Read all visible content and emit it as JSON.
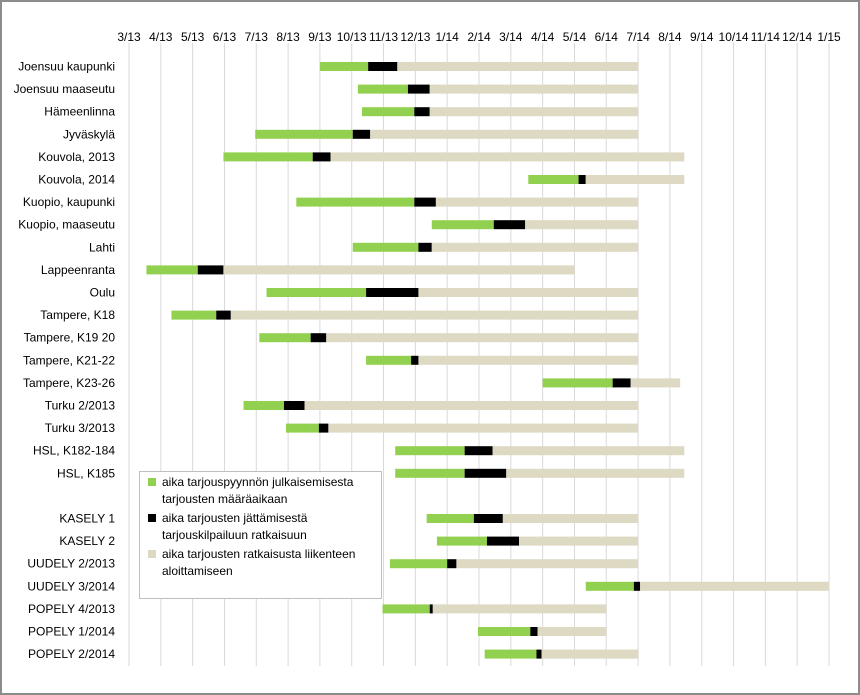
{
  "chart_data": {
    "type": "bar",
    "stacked": true,
    "orientation": "horizontal",
    "title": "",
    "x_ticks": [
      "3/13",
      "4/13",
      "5/13",
      "6/13",
      "7/13",
      "8/13",
      "9/13",
      "10/13",
      "11/13",
      "12/13",
      "1/14",
      "2/14",
      "3/14",
      "4/14",
      "5/14",
      "6/14",
      "7/14",
      "8/14",
      "9/14",
      "10/14",
      "11/14",
      "12/14",
      "1/15"
    ],
    "xlim": [
      "3/13",
      "1/15"
    ],
    "grid": true,
    "legend_placement": "inside lower-left",
    "colors": {
      "green": "#92d050",
      "black": "#000000",
      "beige": "#ddd9c3"
    },
    "series": [
      {
        "name": "aika tarjouspyynnön julkaisemisesta tarjousten määräaikaan",
        "color": "#92d050"
      },
      {
        "name": "aika tarjousten jättämisestä tarjouskilpailuun ratkaisuun",
        "color": "#000000"
      },
      {
        "name": "aika tarjousten ratkaisusta liikenteen aloittamiseen",
        "color": "#ddd9c3"
      }
    ],
    "rows": [
      {
        "label": "Joensuu kaupunki",
        "start": "2013-09-01",
        "tender_deadline": "2013-10-17",
        "decision": "2013-11-14",
        "service_start": "2014-07-01"
      },
      {
        "label": "Joensuu maaseutu",
        "start": "2013-10-07",
        "tender_deadline": "2013-11-24",
        "decision": "2013-12-15",
        "service_start": "2014-07-01"
      },
      {
        "label": "Hämeenlinna",
        "start": "2013-10-11",
        "tender_deadline": "2013-11-30",
        "decision": "2013-12-15",
        "service_start": "2014-07-01"
      },
      {
        "label": "Jyväskylä",
        "start": "2013-06-30",
        "tender_deadline": "2013-10-02",
        "decision": "2013-10-19",
        "service_start": "2014-07-01"
      },
      {
        "label": "Kouvola, 2013",
        "start": "2013-05-31",
        "tender_deadline": "2013-08-25",
        "decision": "2013-09-11",
        "service_start": "2014-08-15"
      },
      {
        "label": "Kouvola, 2014",
        "start": "2014-03-18",
        "tender_deadline": "2014-05-05",
        "decision": "2014-05-12",
        "service_start": "2014-08-15"
      },
      {
        "label": "Kuopio, kaupunki",
        "start": "2013-08-09",
        "tender_deadline": "2013-11-30",
        "decision": "2013-12-21",
        "service_start": "2014-07-01"
      },
      {
        "label": "Kuopio, maaseutu",
        "start": "2013-12-17",
        "tender_deadline": "2014-02-14",
        "decision": "2014-03-15",
        "service_start": "2014-07-01"
      },
      {
        "label": "Lahti",
        "start": "2013-10-02",
        "tender_deadline": "2013-12-04",
        "decision": "2013-12-17",
        "service_start": "2014-07-01"
      },
      {
        "label": "Lappeenranta",
        "start": "2013-03-18",
        "tender_deadline": "2013-05-06",
        "decision": "2013-05-31",
        "service_start": "2014-05-01"
      },
      {
        "label": "Oulu",
        "start": "2013-07-11",
        "tender_deadline": "2013-10-15",
        "decision": "2013-12-04",
        "service_start": "2014-07-01"
      },
      {
        "label": "Tampere, K18",
        "start": "2013-04-11",
        "tender_deadline": "2013-05-24",
        "decision": "2013-06-07",
        "service_start": "2014-07-01"
      },
      {
        "label": "Tampere, K19 20",
        "start": "2013-07-04",
        "tender_deadline": "2013-08-23",
        "decision": "2013-09-07",
        "service_start": "2014-07-01"
      },
      {
        "label": "Tampere, K21-22",
        "start": "2013-10-15",
        "tender_deadline": "2013-11-27",
        "decision": "2013-12-04",
        "service_start": "2014-07-01"
      },
      {
        "label": "Tampere, K23-26",
        "start": "2014-04-01",
        "tender_deadline": "2014-06-07",
        "decision": "2014-06-24",
        "service_start": "2014-08-11"
      },
      {
        "label": "Turku 2/2013",
        "start": "2013-06-19",
        "tender_deadline": "2013-07-28",
        "decision": "2013-08-17",
        "service_start": "2014-07-01"
      },
      {
        "label": "Turku 3/2013",
        "start": "2013-07-30",
        "tender_deadline": "2013-08-31",
        "decision": "2013-09-09",
        "service_start": "2014-07-01"
      },
      {
        "label": "HSL, K182-184",
        "start": "2013-11-12",
        "tender_deadline": "2014-01-18",
        "decision": "2014-02-13",
        "service_start": "2014-08-15"
      },
      {
        "label": "HSL, K185",
        "start": "2013-11-12",
        "tender_deadline": "2014-01-18",
        "decision": "2014-02-25",
        "service_start": "2014-08-15"
      },
      {
        "label": "",
        "empty": true
      },
      {
        "label": "KASELY 1",
        "start": "2013-12-12",
        "tender_deadline": "2014-01-27",
        "decision": "2014-02-22",
        "service_start": "2014-07-01"
      },
      {
        "label": "KASELY 2",
        "start": "2013-12-22",
        "tender_deadline": "2014-02-08",
        "decision": "2014-03-09",
        "service_start": "2014-07-01"
      },
      {
        "label": "UUDELY 2/2013",
        "start": "2013-11-07",
        "tender_deadline": "2014-01-01",
        "decision": "2014-01-10",
        "service_start": "2014-07-01"
      },
      {
        "label": "UUDELY 3/2014",
        "start": "2014-05-12",
        "tender_deadline": "2014-06-27",
        "decision": "2014-07-03",
        "service_start": "2015-01-01"
      },
      {
        "label": "POPELY 4/2013",
        "start": "2013-10-31",
        "tender_deadline": "2013-12-15",
        "decision": "2013-12-18",
        "service_start": "2014-06-01"
      },
      {
        "label": "POPELY 1/2014",
        "start": "2014-01-31",
        "tender_deadline": "2014-03-20",
        "decision": "2014-03-27",
        "service_start": "2014-06-01"
      },
      {
        "label": "POPELY 2/2014",
        "start": "2014-02-06",
        "tender_deadline": "2014-03-26",
        "decision": "2014-03-31",
        "service_start": "2014-07-01"
      }
    ]
  }
}
